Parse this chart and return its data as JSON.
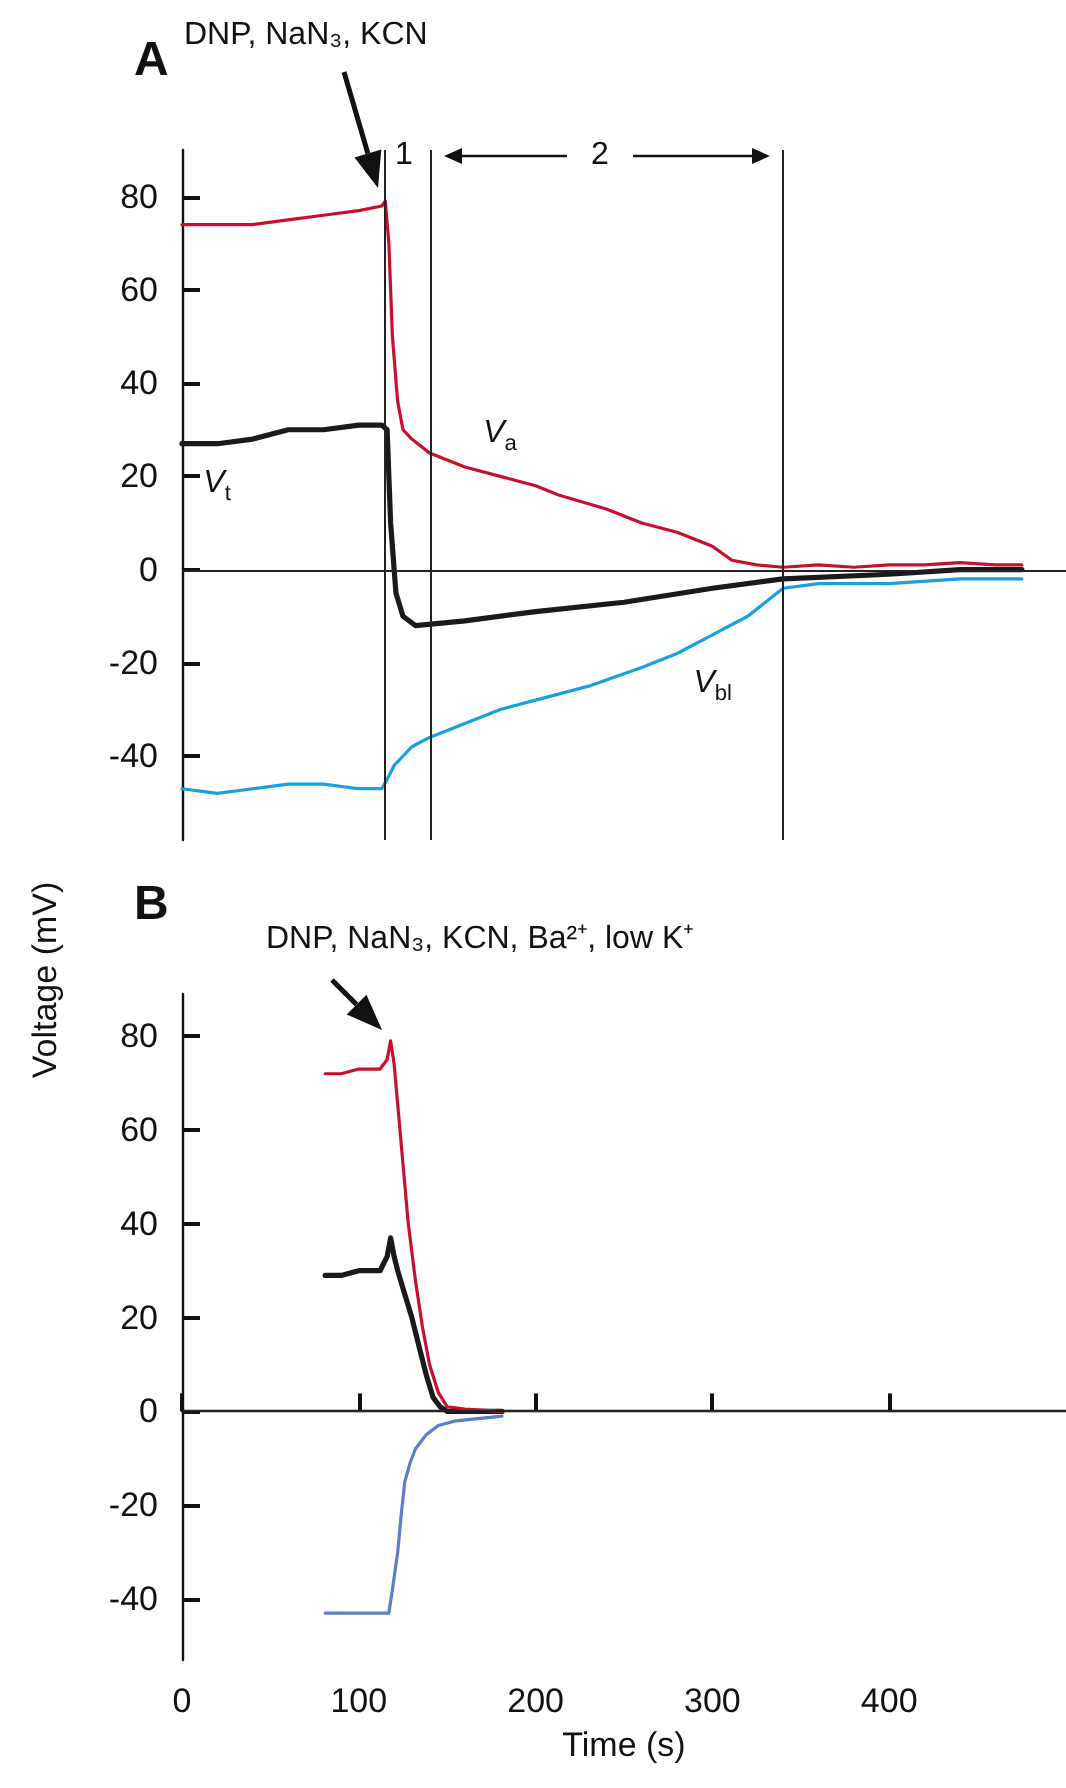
{
  "chart_data": [
    {
      "type": "line",
      "title": "A",
      "ylabel": "Voltage (mV)",
      "xlim": [
        0,
        500
      ],
      "ylim": [
        -58,
        90
      ],
      "yticks": [
        -40,
        -20,
        0,
        20,
        40,
        60,
        80
      ],
      "tick_labels": "y",
      "grid": false,
      "marker": "none",
      "series": [
        {
          "name": "V$_{a}$",
          "color": "#c8102e",
          "x": [
            0,
            20,
            40,
            60,
            80,
            100,
            113,
            115,
            117,
            119,
            122,
            125,
            130,
            140,
            160,
            180,
            200,
            213,
            240,
            260,
            280,
            300,
            311,
            325,
            340,
            360,
            380,
            400,
            420,
            440,
            460,
            475
          ],
          "values": [
            74,
            74,
            74,
            75,
            76,
            77,
            78,
            79,
            70,
            50,
            36,
            30,
            28,
            25,
            22,
            20,
            18,
            16,
            13,
            10,
            8,
            5,
            2,
            1,
            0.5,
            1,
            0.5,
            1,
            1,
            1.5,
            1,
            1
          ]
        },
        {
          "name": "V$_{t}$",
          "color": "#1a1a1a",
          "x": [
            0,
            20,
            40,
            60,
            80,
            100,
            113,
            116,
            118,
            121,
            125,
            132,
            160,
            200,
            250,
            300,
            340,
            400,
            440,
            475
          ],
          "values": [
            27,
            27,
            28,
            30,
            30,
            31,
            31,
            30,
            10,
            -5,
            -10,
            -12,
            -11,
            -9,
            -7,
            -4,
            -2,
            -1,
            0,
            0
          ]
        },
        {
          "name": "V$_{bl}$",
          "color": "#1aa0dc",
          "x": [
            0,
            20,
            40,
            60,
            80,
            100,
            113,
            116,
            120,
            130,
            140,
            160,
            180,
            200,
            230,
            260,
            280,
            300,
            320,
            340,
            360,
            400,
            440,
            475
          ],
          "values": [
            -47,
            -48,
            -47,
            -46,
            -46,
            -47,
            -47,
            -45,
            -42,
            -38,
            -36,
            -33,
            -30,
            -28,
            -25,
            -21,
            -18,
            -14,
            -10,
            -4,
            -3,
            -3,
            -2,
            -2
          ]
        }
      ],
      "ref_lines": [
        {
          "axis": "y",
          "value": 0
        },
        {
          "axis": "x",
          "value": 115
        },
        {
          "axis": "x",
          "value": 140
        },
        {
          "axis": "x",
          "value": 340
        }
      ],
      "annotations": [
        "DNP, NaN₃, KCN",
        "1",
        "2"
      ]
    },
    {
      "type": "line",
      "title": "B",
      "xlabel": "Time (s)",
      "xlim": [
        0,
        500
      ],
      "xticks": [
        0,
        100,
        200,
        300,
        400
      ],
      "ylim": [
        -53,
        89
      ],
      "yticks": [
        -40,
        -20,
        0,
        20,
        40,
        60,
        80
      ],
      "grid": false,
      "marker": "none",
      "series": [
        {
          "color": "#1a1a1a",
          "x": [
            81,
            90,
            100,
            112,
            116,
            118,
            120,
            122,
            126,
            130,
            134,
            138,
            142,
            146,
            150,
            160,
            181
          ],
          "values": [
            29,
            29,
            30,
            30,
            33,
            37,
            33,
            30,
            25,
            20,
            14,
            8,
            3,
            1,
            0,
            0,
            0
          ]
        },
        {
          "color": "#c8102e",
          "x": [
            81,
            90,
            100,
            112,
            116,
            118,
            120,
            124,
            128,
            132,
            136,
            140,
            145,
            150,
            160,
            181
          ],
          "values": [
            72,
            72,
            73,
            73,
            75,
            79,
            74,
            57,
            40,
            28,
            18,
            10,
            4,
            1,
            0.5,
            0
          ]
        },
        {
          "color": "#5b7fc4",
          "x": [
            81,
            90,
            100,
            110,
            117,
            119,
            122,
            124,
            126,
            129,
            132,
            138,
            145,
            155,
            181
          ],
          "values": [
            -43,
            -43,
            -43,
            -43,
            -43,
            -38,
            -30,
            -22,
            -15,
            -11,
            -8,
            -5,
            -3,
            -2,
            -1
          ]
        }
      ],
      "ref_lines": [
        {
          "axis": "y",
          "value": 0
        }
      ],
      "annotations": [
        "DNP, NaN₃, KCN, Ba²⁺, low K⁺"
      ]
    }
  ]
}
